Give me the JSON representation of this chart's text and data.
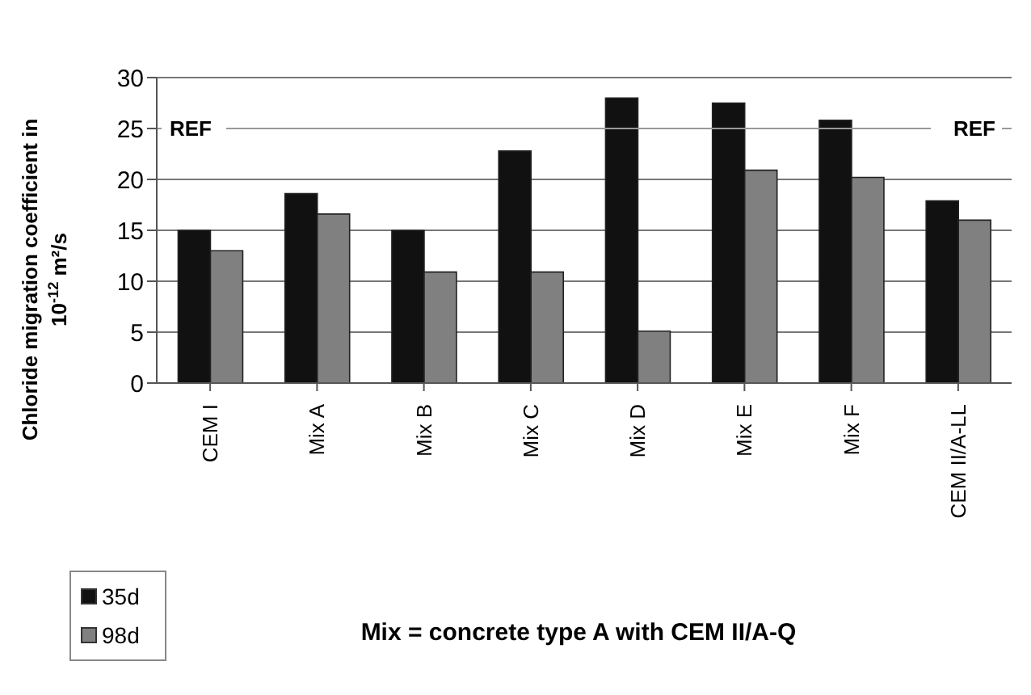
{
  "chart_data": {
    "type": "bar",
    "ylabel": "Chloride migration coefficient in 10$^{-12}$ m²/s",
    "xlabel": "Mix = concrete type A with CEM II/A-Q",
    "categories": [
      "CEM I",
      "Mix A",
      "Mix B",
      "Mix C",
      "Mix D",
      "Mix E",
      "Mix F",
      "CEM II/A-LL"
    ],
    "series": [
      {
        "name": "35d",
        "color": "#111111",
        "values": [
          15,
          18.6,
          15,
          22.8,
          28,
          27.5,
          25.8,
          17.9
        ]
      },
      {
        "name": "98d",
        "color": "#808080",
        "values": [
          13,
          16.6,
          10.9,
          10.9,
          5.1,
          20.9,
          20.2,
          16
        ]
      }
    ],
    "ylim": [
      0,
      30
    ],
    "yticks": [
      0,
      5,
      10,
      15,
      20,
      25,
      30
    ],
    "grid": "y",
    "legend": "bottom left",
    "ref_lines": [
      {
        "axis": "y",
        "value": 25,
        "label": "REF",
        "color": "#999999"
      }
    ]
  }
}
